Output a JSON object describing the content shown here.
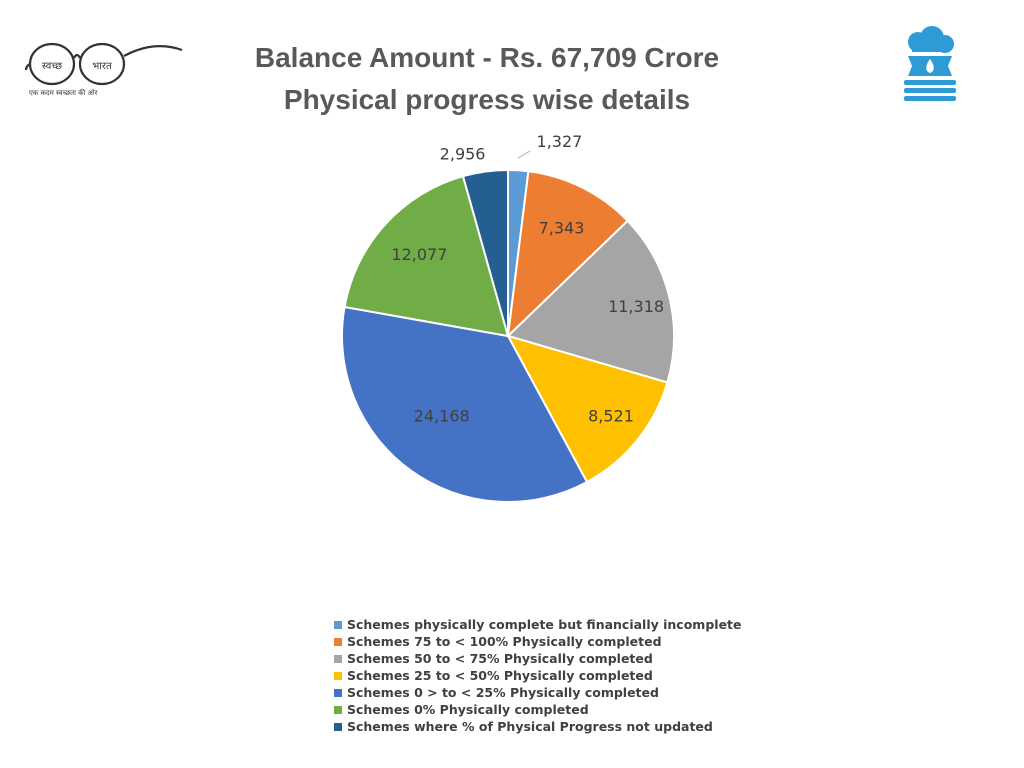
{
  "header": {
    "title_line1": "Balance Amount - Rs. 67,709 Crore",
    "title_line2": "Physical progress wise details"
  },
  "logos": {
    "left": {
      "name": "swachh-bharat-logo",
      "text_left": "स्वच्छ",
      "text_right": "भारत",
      "tagline": "एक कदम स्वच्छता की ओर"
    },
    "right": {
      "name": "jal-jeevan-mission-logo"
    }
  },
  "chart_data": {
    "type": "pie",
    "title": "",
    "start_angle_deg": 0,
    "direction": "clockwise",
    "slices": [
      {
        "label": "Schemes physically complete but financially incomplete",
        "value": 1327,
        "display": "1,327",
        "color": "#5B9BD5"
      },
      {
        "label": "Schemes 75 to < 100% Physically completed",
        "value": 7343,
        "display": "7,343",
        "color": "#ED7D31"
      },
      {
        "label": "Schemes 50 to < 75% Physically completed",
        "value": 11318,
        "display": "11,318",
        "color": "#A5A5A5"
      },
      {
        "label": "Schemes 25 to < 50% Physically completed",
        "value": 8521,
        "display": "8,521",
        "color": "#FFC000"
      },
      {
        "label": "Schemes 0 > to < 25% Physically completed",
        "value": 24168,
        "display": "24,168",
        "color": "#4472C4"
      },
      {
        "label": "Schemes 0% Physically completed",
        "value": 12077,
        "display": "12,077",
        "color": "#70AD47"
      },
      {
        "label": "Schemes where % of Physical Progress not updated",
        "value": 2956,
        "display": "2,956",
        "color": "#255E91"
      }
    ],
    "legend_position": "bottom"
  }
}
